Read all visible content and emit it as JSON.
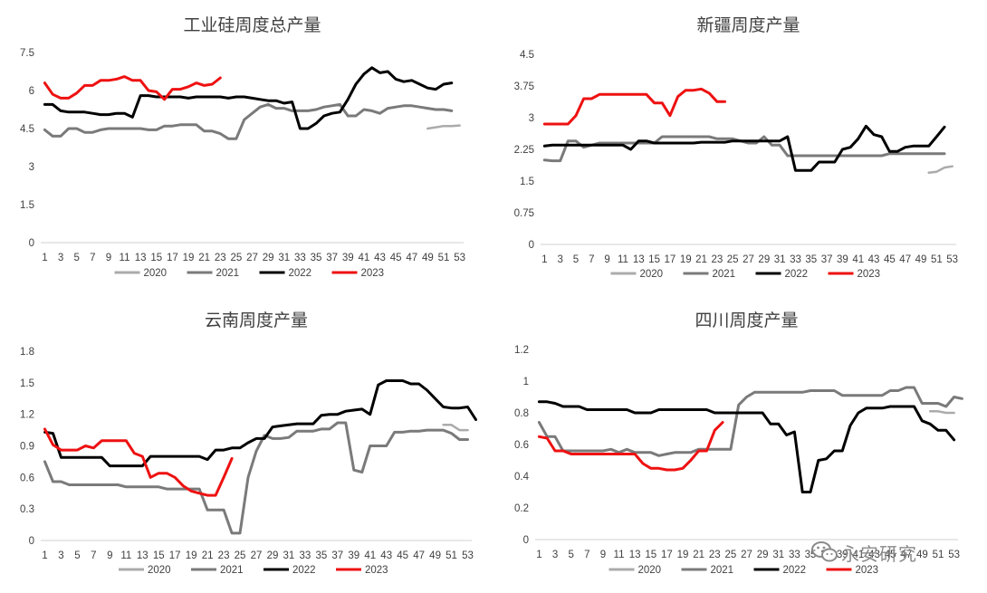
{
  "colors": {
    "2020": "#ababab",
    "2021": "#7a7a7a",
    "2022": "#000000",
    "2023": "#ee1111"
  },
  "watermark": {
    "text": "永安研究",
    "icon": "wechat-icon"
  },
  "chart_data": [
    {
      "id": "chart-industrial-silicon",
      "type": "line",
      "title": "工业硅周度总产量",
      "ylim": [
        0,
        7.5
      ],
      "yticks": [
        "0",
        "1.5",
        "3",
        "4.5",
        "6",
        "7.5"
      ],
      "ytick_values": [
        0,
        1.5,
        3,
        4.5,
        6,
        7.5
      ],
      "xticks": [
        "1",
        "3",
        "5",
        "7",
        "9",
        "11",
        "13",
        "15",
        "17",
        "19",
        "21",
        "23",
        "25",
        "27",
        "29",
        "31",
        "33",
        "35",
        "37",
        "39",
        "41",
        "43",
        "45",
        "47",
        "49",
        "51",
        "53"
      ],
      "legend": [
        "2020",
        "2021",
        "2022",
        "2023"
      ],
      "series": [
        {
          "name": "2020",
          "start": 49,
          "values": [
            4.5,
            4.55,
            4.6,
            4.6,
            4.62
          ]
        },
        {
          "name": "2021",
          "start": 1,
          "values": [
            4.45,
            4.2,
            4.2,
            4.5,
            4.5,
            4.35,
            4.35,
            4.45,
            4.5,
            4.5,
            4.5,
            4.5,
            4.5,
            4.45,
            4.45,
            4.6,
            4.6,
            4.65,
            4.65,
            4.65,
            4.4,
            4.4,
            4.3,
            4.1,
            4.1,
            4.85,
            5.1,
            5.35,
            5.45,
            5.3,
            5.3,
            5.2,
            5.2,
            5.2,
            5.25,
            5.35,
            5.4,
            5.45,
            5.0,
            5.0,
            5.25,
            5.2,
            5.1,
            5.3,
            5.35,
            5.4,
            5.4,
            5.35,
            5.3,
            5.25,
            5.25,
            5.2
          ]
        },
        {
          "name": "2022",
          "start": 1,
          "values": [
            5.45,
            5.45,
            5.2,
            5.15,
            5.15,
            5.15,
            5.1,
            5.05,
            5.05,
            5.1,
            5.1,
            4.95,
            5.8,
            5.8,
            5.75,
            5.75,
            5.75,
            5.75,
            5.7,
            5.75,
            5.75,
            5.75,
            5.75,
            5.7,
            5.75,
            5.75,
            5.7,
            5.65,
            5.6,
            5.6,
            5.5,
            5.55,
            4.5,
            4.5,
            4.7,
            5.0,
            5.1,
            5.15,
            5.65,
            6.25,
            6.65,
            6.9,
            6.7,
            6.75,
            6.45,
            6.35,
            6.4,
            6.25,
            6.1,
            6.05,
            6.25,
            6.3
          ]
        },
        {
          "name": "2023",
          "start": 1,
          "values": [
            6.3,
            5.85,
            5.7,
            5.7,
            5.9,
            6.2,
            6.2,
            6.4,
            6.4,
            6.45,
            6.55,
            6.4,
            6.4,
            6.0,
            5.95,
            5.65,
            6.05,
            6.05,
            6.15,
            6.3,
            6.2,
            6.25,
            6.5
          ]
        }
      ]
    },
    {
      "id": "chart-xinjiang",
      "type": "line",
      "title": "新疆周度产量",
      "ylim": [
        0,
        4.5
      ],
      "yticks": [
        "0",
        "0.75",
        "1.5",
        "2.25",
        "3",
        "3.75",
        "4.5"
      ],
      "ytick_values": [
        0,
        0.75,
        1.5,
        2.25,
        3,
        3.75,
        4.5
      ],
      "xticks": [
        "1",
        "3",
        "5",
        "7",
        "9",
        "11",
        "13",
        "15",
        "17",
        "19",
        "21",
        "23",
        "25",
        "27",
        "29",
        "31",
        "33",
        "35",
        "37",
        "39",
        "41",
        "43",
        "45",
        "47",
        "49",
        "51",
        "53"
      ],
      "legend": [
        "2020",
        "2021",
        "2022",
        "2023"
      ],
      "series": [
        {
          "name": "2020",
          "start": 50,
          "values": [
            1.7,
            1.72,
            1.82,
            1.85
          ]
        },
        {
          "name": "2021",
          "start": 1,
          "values": [
            2.0,
            1.98,
            1.98,
            2.45,
            2.45,
            2.3,
            2.35,
            2.4,
            2.4,
            2.4,
            2.4,
            2.4,
            2.4,
            2.4,
            2.4,
            2.55,
            2.55,
            2.55,
            2.55,
            2.55,
            2.55,
            2.55,
            2.5,
            2.5,
            2.5,
            2.45,
            2.4,
            2.4,
            2.55,
            2.35,
            2.35,
            2.1,
            2.1,
            2.1,
            2.1,
            2.1,
            2.1,
            2.1,
            2.1,
            2.1,
            2.1,
            2.1,
            2.1,
            2.1,
            2.15,
            2.15,
            2.15,
            2.15,
            2.15,
            2.15,
            2.15,
            2.15
          ]
        },
        {
          "name": "2022",
          "start": 1,
          "values": [
            2.33,
            2.35,
            2.35,
            2.35,
            2.35,
            2.35,
            2.35,
            2.35,
            2.35,
            2.35,
            2.35,
            2.25,
            2.45,
            2.45,
            2.4,
            2.4,
            2.4,
            2.4,
            2.4,
            2.4,
            2.42,
            2.42,
            2.42,
            2.42,
            2.45,
            2.45,
            2.45,
            2.45,
            2.45,
            2.45,
            2.45,
            2.55,
            1.75,
            1.75,
            1.75,
            1.95,
            1.95,
            1.95,
            2.25,
            2.3,
            2.5,
            2.8,
            2.6,
            2.55,
            2.2,
            2.2,
            2.3,
            2.33,
            2.33,
            2.33,
            2.55,
            2.78
          ]
        },
        {
          "name": "2023",
          "start": 1,
          "values": [
            2.85,
            2.85,
            2.85,
            2.85,
            3.05,
            3.45,
            3.45,
            3.55,
            3.55,
            3.55,
            3.55,
            3.55,
            3.55,
            3.55,
            3.35,
            3.35,
            3.05,
            3.5,
            3.65,
            3.65,
            3.68,
            3.58,
            3.38,
            3.38
          ]
        }
      ]
    },
    {
      "id": "chart-yunnan",
      "type": "line",
      "title": "云南周度产量",
      "ylim": [
        0,
        1.8
      ],
      "yticks": [
        "0",
        "0.3",
        "0.6",
        "0.9",
        "1.2",
        "1.5",
        "1.8"
      ],
      "ytick_values": [
        0,
        0.3,
        0.6,
        0.9,
        1.2,
        1.5,
        1.8
      ],
      "xticks": [
        "1",
        "3",
        "5",
        "7",
        "9",
        "11",
        "13",
        "15",
        "17",
        "19",
        "21",
        "23",
        "25",
        "27",
        "29",
        "31",
        "33",
        "35",
        "37",
        "39",
        "41",
        "43",
        "45",
        "47",
        "49",
        "51",
        "53"
      ],
      "legend": [
        "2020",
        "2021",
        "2022",
        "2023"
      ],
      "series": [
        {
          "name": "2020",
          "start": 50,
          "values": [
            1.1,
            1.1,
            1.05,
            1.05
          ]
        },
        {
          "name": "2021",
          "start": 1,
          "values": [
            0.75,
            0.56,
            0.56,
            0.53,
            0.53,
            0.53,
            0.53,
            0.53,
            0.53,
            0.53,
            0.51,
            0.51,
            0.51,
            0.51,
            0.51,
            0.49,
            0.49,
            0.49,
            0.49,
            0.49,
            0.29,
            0.29,
            0.29,
            0.07,
            0.07,
            0.6,
            0.85,
            1.0,
            0.97,
            0.97,
            0.98,
            1.04,
            1.04,
            1.04,
            1.06,
            1.06,
            1.12,
            1.12,
            0.67,
            0.65,
            0.9,
            0.9,
            0.9,
            1.03,
            1.03,
            1.04,
            1.04,
            1.05,
            1.05,
            1.05,
            1.02,
            0.96,
            0.96
          ]
        },
        {
          "name": "2022",
          "start": 1,
          "values": [
            1.03,
            1.02,
            0.79,
            0.79,
            0.79,
            0.79,
            0.79,
            0.79,
            0.71,
            0.71,
            0.71,
            0.71,
            0.71,
            0.8,
            0.8,
            0.8,
            0.8,
            0.8,
            0.8,
            0.8,
            0.77,
            0.86,
            0.86,
            0.88,
            0.88,
            0.93,
            0.97,
            0.97,
            1.08,
            1.09,
            1.1,
            1.11,
            1.11,
            1.11,
            1.19,
            1.2,
            1.2,
            1.23,
            1.24,
            1.25,
            1.2,
            1.48,
            1.52,
            1.52,
            1.52,
            1.49,
            1.49,
            1.43,
            1.35,
            1.27,
            1.26,
            1.26,
            1.27,
            1.15
          ]
        },
        {
          "name": "2023",
          "start": 1,
          "values": [
            1.06,
            0.91,
            0.86,
            0.86,
            0.86,
            0.9,
            0.88,
            0.95,
            0.95,
            0.95,
            0.95,
            0.83,
            0.8,
            0.6,
            0.64,
            0.64,
            0.6,
            0.52,
            0.47,
            0.45,
            0.43,
            0.43,
            0.6,
            0.78
          ]
        }
      ]
    },
    {
      "id": "chart-sichuan",
      "type": "line",
      "title": "四川周度产量",
      "ylim": [
        0,
        1.2
      ],
      "yticks": [
        "0",
        "0.2",
        "0.4",
        "0.6",
        "0.8",
        "1",
        "1.2"
      ],
      "ytick_values": [
        0,
        0.2,
        0.4,
        0.6,
        0.8,
        1,
        1.2
      ],
      "xticks": [
        "1",
        "3",
        "5",
        "7",
        "9",
        "11",
        "13",
        "15",
        "17",
        "19",
        "21",
        "23",
        "25",
        "27",
        "29",
        "31",
        "33",
        "35",
        "37",
        "39",
        "41",
        "43",
        "45",
        "47",
        "49",
        "51",
        "53"
      ],
      "legend": [
        "2020",
        "2021",
        "2022",
        "2023"
      ],
      "series": [
        {
          "name": "2020",
          "start": 50,
          "values": [
            0.81,
            0.81,
            0.8,
            0.8
          ]
        },
        {
          "name": "2021",
          "start": 1,
          "values": [
            0.74,
            0.65,
            0.65,
            0.56,
            0.56,
            0.56,
            0.56,
            0.56,
            0.56,
            0.57,
            0.55,
            0.57,
            0.55,
            0.55,
            0.55,
            0.53,
            0.54,
            0.55,
            0.55,
            0.55,
            0.57,
            0.57,
            0.57,
            0.57,
            0.57,
            0.85,
            0.9,
            0.93,
            0.93,
            0.93,
            0.93,
            0.93,
            0.93,
            0.93,
            0.94,
            0.94,
            0.94,
            0.94,
            0.91,
            0.91,
            0.91,
            0.91,
            0.91,
            0.91,
            0.94,
            0.94,
            0.96,
            0.96,
            0.86,
            0.86,
            0.86,
            0.84,
            0.9,
            0.89
          ]
        },
        {
          "name": "2022",
          "start": 1,
          "values": [
            0.87,
            0.87,
            0.86,
            0.84,
            0.84,
            0.84,
            0.82,
            0.82,
            0.82,
            0.82,
            0.82,
            0.82,
            0.8,
            0.8,
            0.8,
            0.82,
            0.82,
            0.82,
            0.82,
            0.82,
            0.82,
            0.82,
            0.8,
            0.8,
            0.8,
            0.8,
            0.8,
            0.8,
            0.8,
            0.73,
            0.73,
            0.66,
            0.68,
            0.3,
            0.3,
            0.5,
            0.51,
            0.56,
            0.56,
            0.72,
            0.8,
            0.83,
            0.83,
            0.83,
            0.84,
            0.84,
            0.84,
            0.84,
            0.75,
            0.73,
            0.69,
            0.69,
            0.63
          ]
        },
        {
          "name": "2023",
          "start": 1,
          "values": [
            0.65,
            0.64,
            0.56,
            0.56,
            0.54,
            0.54,
            0.54,
            0.54,
            0.54,
            0.54,
            0.54,
            0.54,
            0.54,
            0.48,
            0.45,
            0.45,
            0.44,
            0.44,
            0.45,
            0.5,
            0.56,
            0.56,
            0.69,
            0.74
          ]
        }
      ]
    }
  ]
}
